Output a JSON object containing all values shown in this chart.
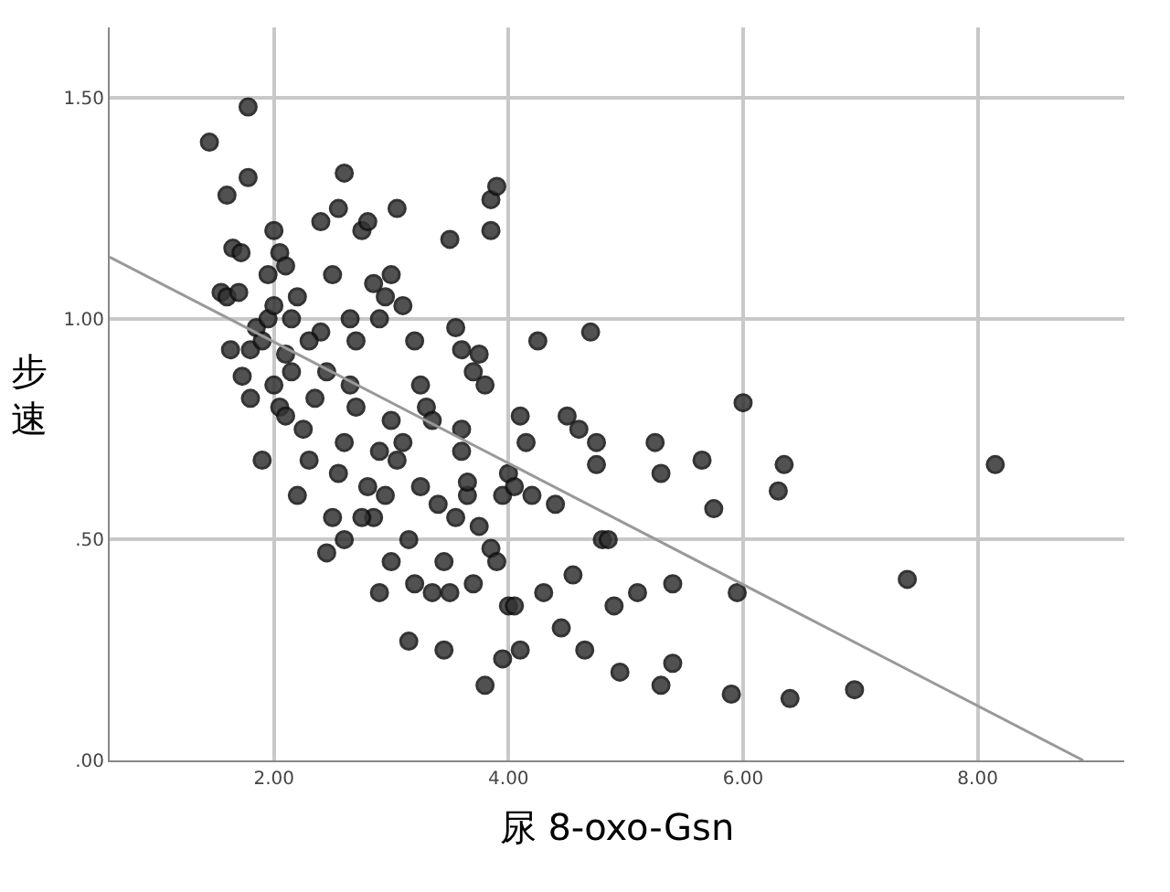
{
  "chart_data": {
    "type": "scatter",
    "xlabel": "尿 8-oxo-Gsn",
    "ylabel": "步速",
    "xlim": [
      0.6,
      9.25
    ],
    "ylim": [
      0,
      1.66
    ],
    "xticks": [
      {
        "value": 2,
        "label": "2.00"
      },
      {
        "value": 4,
        "label": "4.00"
      },
      {
        "value": 6,
        "label": "6.00"
      },
      {
        "value": 8,
        "label": "8.00"
      }
    ],
    "yticks": [
      {
        "value": 0,
        "label": ".00"
      },
      {
        "value": 0.5,
        "label": ".50"
      },
      {
        "value": 1,
        "label": "1.00"
      },
      {
        "value": 1.5,
        "label": "1.50"
      }
    ],
    "grid": true,
    "marker": "circle",
    "series": [
      {
        "color": "#333333",
        "x": [
          1.45,
          1.78,
          1.78,
          1.6,
          1.65,
          1.72,
          1.55,
          1.6,
          1.7,
          1.63,
          1.8,
          1.73,
          1.8,
          1.85,
          1.9,
          1.95,
          2.0,
          2.0,
          2.05,
          2.1,
          1.95,
          1.9,
          2.0,
          2.05,
          2.1,
          2.15,
          2.1,
          2.15,
          2.2,
          2.25,
          2.3,
          2.35,
          2.4,
          2.45,
          2.4,
          2.55,
          2.5,
          2.6,
          2.65,
          2.7,
          2.45,
          2.5,
          2.55,
          2.6,
          2.65,
          2.7,
          2.75,
          2.8,
          2.85,
          2.9,
          2.95,
          3.0,
          3.05,
          3.1,
          2.8,
          2.85,
          2.9,
          2.95,
          3.0,
          3.05,
          3.1,
          3.15,
          3.2,
          3.25,
          3.0,
          3.2,
          3.25,
          3.3,
          3.35,
          3.4,
          3.45,
          3.5,
          3.45,
          3.55,
          3.6,
          3.5,
          3.6,
          3.65,
          3.7,
          3.75,
          3.8,
          3.85,
          3.9,
          3.85,
          3.9,
          3.85,
          3.8,
          3.7,
          3.75,
          3.95,
          4.0,
          4.05,
          4.1,
          3.95,
          4.0,
          4.05,
          4.1,
          4.15,
          4.2,
          4.25,
          4.3,
          4.4,
          4.5,
          4.55,
          4.6,
          4.7,
          4.75,
          4.8,
          4.85,
          4.9,
          4.95,
          4.75,
          5.1,
          5.25,
          5.3,
          5.3,
          5.4,
          5.4,
          5.65,
          5.75,
          5.9,
          5.95,
          6.0,
          6.35,
          6.3,
          6.4,
          6.95,
          7.4,
          8.15,
          3.65,
          3.55,
          2.3,
          2.2,
          2.75,
          3.35,
          3.6,
          2.6,
          2.9,
          3.15,
          4.45,
          4.65
        ],
        "values": [
          1.4,
          1.48,
          1.32,
          1.28,
          1.16,
          1.15,
          1.06,
          1.05,
          1.06,
          0.93,
          0.93,
          0.87,
          0.82,
          0.98,
          0.95,
          1.0,
          1.03,
          1.2,
          1.15,
          1.12,
          1.1,
          0.68,
          0.85,
          0.8,
          0.78,
          0.88,
          0.92,
          1.0,
          1.05,
          0.75,
          0.68,
          0.82,
          0.97,
          0.88,
          1.22,
          1.25,
          1.1,
          1.33,
          1.0,
          0.95,
          0.47,
          0.55,
          0.65,
          0.72,
          0.85,
          0.8,
          1.2,
          1.22,
          1.08,
          1.0,
          1.05,
          1.1,
          1.25,
          1.03,
          0.62,
          0.55,
          0.7,
          0.6,
          0.77,
          0.68,
          0.72,
          0.5,
          0.4,
          0.62,
          0.45,
          0.95,
          0.85,
          0.8,
          0.77,
          0.58,
          0.45,
          0.38,
          0.25,
          0.98,
          0.93,
          1.18,
          0.7,
          0.6,
          0.4,
          0.53,
          0.17,
          0.48,
          0.45,
          1.27,
          1.3,
          1.2,
          0.85,
          0.88,
          0.92,
          0.6,
          0.35,
          0.35,
          0.25,
          0.23,
          0.65,
          0.62,
          0.78,
          0.72,
          0.6,
          0.95,
          0.38,
          0.58,
          0.78,
          0.42,
          0.75,
          0.97,
          0.72,
          0.5,
          0.5,
          0.35,
          0.2,
          0.67,
          0.38,
          0.72,
          0.65,
          0.17,
          0.22,
          0.4,
          0.68,
          0.57,
          0.15,
          0.38,
          0.81,
          0.67,
          0.61,
          0.14,
          0.16,
          0.41,
          0.67,
          0.63,
          0.55,
          0.95,
          0.6,
          0.55,
          0.38,
          0.75,
          0.5,
          0.38,
          0.27,
          0.3,
          0.25
        ]
      },
      {
        "type": "line",
        "color": "#999999",
        "marker": "none",
        "x": [
          0.6,
          8.9
        ],
        "values": [
          1.14,
          0
        ]
      }
    ]
  }
}
